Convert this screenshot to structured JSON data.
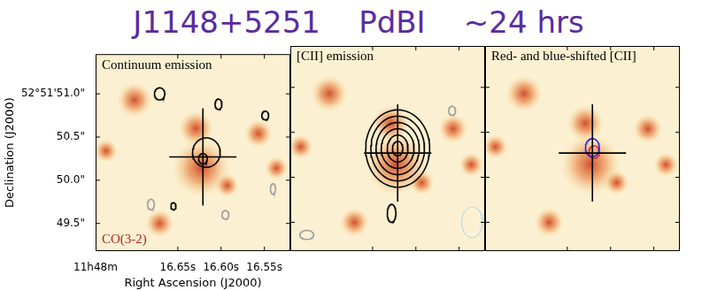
{
  "title": "J1148+5251    PdBI    ~24 hrs",
  "chart_data": [
    {
      "type": "contour",
      "title": "Continuum emission",
      "annotation": "CO(3-2)",
      "xlabel": "Right Ascension (J2000)",
      "ylabel": "Declination (J2000)",
      "xlim": [
        16.745,
        16.52
      ],
      "ylim": [
        49.18,
        51.46
      ],
      "xticks": [
        {
          "value": 16.745,
          "label": "11h48m"
        },
        {
          "value": 16.65,
          "label": "16.65s"
        },
        {
          "value": 16.6,
          "label": "16.60s"
        },
        {
          "value": 16.55,
          "label": "16.55s"
        }
      ],
      "yticks": [
        {
          "value": 51.0,
          "label": "52°51'51.0\""
        },
        {
          "value": 50.5,
          "label": "50.5\""
        },
        {
          "value": 50.0,
          "label": "50.0\""
        },
        {
          "value": 49.5,
          "label": "49.5\""
        }
      ],
      "crosshair": {
        "ra": 16.621,
        "dec": 50.27
      },
      "sources": [
        {
          "ra": 16.623,
          "dec": 50.14,
          "size": 0.25
        },
        {
          "ra": 16.629,
          "dec": 50.6,
          "size": 0.15
        },
        {
          "ra": 16.7,
          "dec": 50.93,
          "size": 0.15
        },
        {
          "ra": 16.557,
          "dec": 50.54,
          "size": 0.12
        },
        {
          "ra": 16.536,
          "dec": 50.14,
          "size": 0.1
        },
        {
          "ra": 16.593,
          "dec": 49.94,
          "size": 0.1
        },
        {
          "ra": 16.671,
          "dec": 49.5,
          "size": 0.12
        },
        {
          "ra": 16.733,
          "dec": 50.34,
          "size": 0.1
        }
      ],
      "contours": [
        {
          "ra": 16.617,
          "dec": 50.32,
          "dra": 0.016,
          "ddec": 0.17,
          "color": "#000000"
        },
        {
          "ra": 16.621,
          "dec": 50.25,
          "dra": 0.005,
          "ddec": 0.06,
          "color": "#000000"
        },
        {
          "ra": 16.671,
          "dec": 51.0,
          "dra": 0.006,
          "ddec": 0.07,
          "color": "#000000"
        },
        {
          "ra": 16.603,
          "dec": 50.88,
          "dra": 0.004,
          "ddec": 0.06,
          "color": "#000000"
        },
        {
          "ra": 16.549,
          "dec": 50.75,
          "dra": 0.004,
          "ddec": 0.05,
          "color": "#000000"
        },
        {
          "ra": 16.655,
          "dec": 49.7,
          "dra": 0.003,
          "ddec": 0.04,
          "color": "#000000"
        },
        {
          "ra": 16.681,
          "dec": 49.72,
          "dra": 0.004,
          "ddec": 0.06,
          "color": "#a0a0a0"
        },
        {
          "ra": 16.595,
          "dec": 49.6,
          "dra": 0.004,
          "ddec": 0.05,
          "color": "#a0a0a0"
        },
        {
          "ra": 16.54,
          "dec": 49.9,
          "dra": 0.003,
          "ddec": 0.06,
          "color": "#a0a0a0"
        }
      ]
    },
    {
      "type": "contour",
      "title": "[CII] emission",
      "tick_labels": false,
      "xlim": [
        16.745,
        16.52
      ],
      "ylim": [
        49.18,
        51.46
      ],
      "xticks": [
        16.65,
        16.6,
        16.55
      ],
      "yticks": [
        51.0,
        50.5,
        50.0,
        49.5
      ],
      "crosshair": {
        "ra": 16.621,
        "dec": 50.27
      },
      "sources": [
        {
          "ra": 16.623,
          "dec": 50.14,
          "size": 0.25
        },
        {
          "ra": 16.629,
          "dec": 50.6,
          "size": 0.15
        },
        {
          "ra": 16.7,
          "dec": 50.93,
          "size": 0.15
        },
        {
          "ra": 16.557,
          "dec": 50.54,
          "size": 0.12
        },
        {
          "ra": 16.536,
          "dec": 50.14,
          "size": 0.1
        },
        {
          "ra": 16.593,
          "dec": 49.94,
          "size": 0.1
        },
        {
          "ra": 16.671,
          "dec": 49.5,
          "size": 0.12
        },
        {
          "ra": 16.733,
          "dec": 50.34,
          "size": 0.1
        }
      ],
      "contours": [
        {
          "ra": 16.621,
          "dec": 50.32,
          "dra": 0.037,
          "ddec": 0.43,
          "color": "#000000"
        },
        {
          "ra": 16.621,
          "dec": 50.32,
          "dra": 0.031,
          "ddec": 0.36,
          "color": "#000000"
        },
        {
          "ra": 16.621,
          "dec": 50.32,
          "dra": 0.025,
          "ddec": 0.29,
          "color": "#000000"
        },
        {
          "ra": 16.621,
          "dec": 50.32,
          "dra": 0.019,
          "ddec": 0.22,
          "color": "#000000"
        },
        {
          "ra": 16.621,
          "dec": 50.32,
          "dra": 0.012,
          "ddec": 0.15,
          "color": "#000000"
        },
        {
          "ra": 16.621,
          "dec": 50.32,
          "dra": 0.006,
          "ddec": 0.08,
          "color": "#000000"
        },
        {
          "ra": 16.628,
          "dec": 49.6,
          "dra": 0.005,
          "ddec": 0.1,
          "color": "#000000"
        },
        {
          "ra": 16.726,
          "dec": 49.36,
          "dra": 0.008,
          "ddec": 0.05,
          "color": "#a0a0a0"
        },
        {
          "ra": 16.558,
          "dec": 50.74,
          "dra": 0.004,
          "ddec": 0.05,
          "color": "#a0a0a0"
        }
      ],
      "beam": {
        "ra": 16.535,
        "dec": 49.5,
        "dra": 0.012,
        "ddec": 0.17,
        "color": "#a8d4f0"
      }
    },
    {
      "type": "contour",
      "title": "Red- and blue-shifted [CII]",
      "tick_labels": false,
      "xlim": [
        16.745,
        16.52
      ],
      "ylim": [
        49.18,
        51.46
      ],
      "xticks": [
        16.65,
        16.6,
        16.55
      ],
      "yticks": [
        51.0,
        50.5,
        50.0,
        49.5
      ],
      "crosshair": {
        "ra": 16.621,
        "dec": 50.27
      },
      "sources": [
        {
          "ra": 16.623,
          "dec": 50.14,
          "size": 0.25
        },
        {
          "ra": 16.629,
          "dec": 50.6,
          "size": 0.15
        },
        {
          "ra": 16.7,
          "dec": 50.93,
          "size": 0.15
        },
        {
          "ra": 16.557,
          "dec": 50.54,
          "size": 0.12
        },
        {
          "ra": 16.536,
          "dec": 50.14,
          "size": 0.1
        },
        {
          "ra": 16.593,
          "dec": 49.94,
          "size": 0.1
        },
        {
          "ra": 16.671,
          "dec": 49.5,
          "size": 0.12
        },
        {
          "ra": 16.733,
          "dec": 50.34,
          "size": 0.1
        }
      ],
      "contours": [
        {
          "ra": 16.621,
          "dec": 50.33,
          "dra": 0.008,
          "ddec": 0.1,
          "color": "#2b2bd6"
        },
        {
          "ra": 16.619,
          "dec": 50.28,
          "dra": 0.006,
          "ddec": 0.07,
          "color": "#d62b2b"
        }
      ]
    }
  ]
}
